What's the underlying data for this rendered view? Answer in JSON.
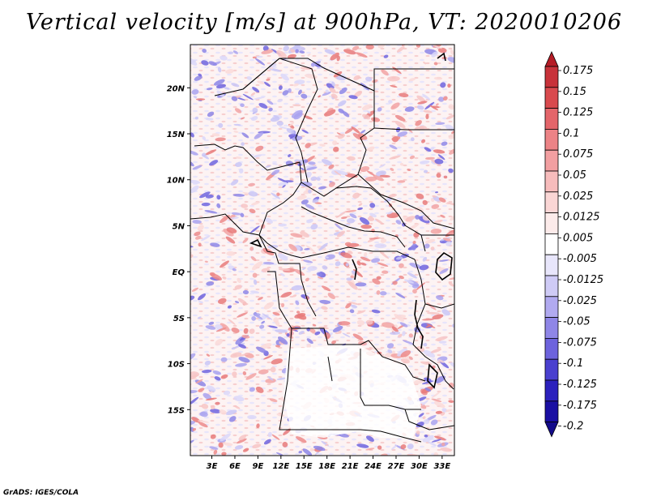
{
  "title": "Vertical velocity [m/s] at 900hPa, VT: 2020010206",
  "credit": "GrADS: IGES/COLA",
  "map": {
    "lat_ticks": [
      {
        "label": "20N",
        "lat": 20
      },
      {
        "label": "15N",
        "lat": 15
      },
      {
        "label": "10N",
        "lat": 10
      },
      {
        "label": "5N",
        "lat": 5
      },
      {
        "label": "EQ",
        "lat": 0
      },
      {
        "label": "5S",
        "lat": -5
      },
      {
        "label": "10S",
        "lat": -10
      },
      {
        "label": "15S",
        "lat": -15
      }
    ],
    "lon_ticks": [
      {
        "label": "3E",
        "lon": 3
      },
      {
        "label": "6E",
        "lon": 6
      },
      {
        "label": "9E",
        "lon": 9
      },
      {
        "label": "12E",
        "lon": 12
      },
      {
        "label": "15E",
        "lon": 15
      },
      {
        "label": "18E",
        "lon": 18
      },
      {
        "label": "21E",
        "lon": 21
      },
      {
        "label": "24E",
        "lon": 24
      },
      {
        "label": "27E",
        "lon": 27
      },
      {
        "label": "30E",
        "lon": 30
      },
      {
        "label": "33E",
        "lon": 33
      }
    ],
    "lon_range": [
      0.2,
      34.6
    ],
    "lat_range": [
      -20,
      24.7
    ]
  },
  "colorbar": {
    "labels": [
      "0.175",
      "0.15",
      "0.125",
      "0.1",
      "0.075",
      "0.05",
      "0.025",
      "0.0125",
      "0.005",
      "-0.005",
      "-0.0125",
      "-0.025",
      "-0.05",
      "-0.075",
      "-0.1",
      "-0.125",
      "-0.175",
      "-0.2"
    ],
    "colors": [
      "#b51c26",
      "#c8323a",
      "#d94a4e",
      "#e4656a",
      "#ec8386",
      "#f29fa1",
      "#f7bcbc",
      "#fad6d5",
      "#fcebea",
      "#ffffff",
      "#e8e6fb",
      "#cfcbf6",
      "#b1aaf0",
      "#8f86e7",
      "#6d63dd",
      "#4a40cf",
      "#2c21bd",
      "#1a0fa3",
      "#130b8a"
    ]
  }
}
